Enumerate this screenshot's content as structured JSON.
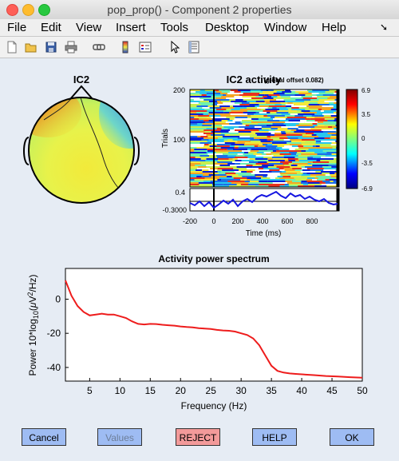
{
  "window": {
    "title": "pop_prop() - Component 2 properties"
  },
  "menu": [
    "File",
    "Edit",
    "View",
    "Insert",
    "Tools",
    "Desktop",
    "Window",
    "Help"
  ],
  "toolbar": [
    "new-icon",
    "open-icon",
    "save-icon",
    "print-icon",
    "link-icon",
    "colorbar-icon",
    "legend-icon",
    "pointer-icon",
    "property-editor-icon"
  ],
  "scalp": {
    "title": "IC2"
  },
  "erp": {
    "title": "IC2 activity",
    "subtitle": "(global offset 0.082)",
    "ylabel": "Trials",
    "trial_ticks": [
      "200",
      "100"
    ],
    "erp_ticks": [
      "0.4",
      "-0.3000"
    ],
    "xticks": [
      "-200",
      "0",
      "200",
      "400",
      "600",
      "800"
    ],
    "xlabel": "Time (ms)",
    "colorbar_ticks": [
      "6.9",
      "3.5",
      "0",
      "-3.5",
      "-6.9"
    ]
  },
  "chart_data": {
    "type": "line",
    "title": "Activity power spectrum",
    "xlabel": "Frequency (Hz)",
    "ylabel": "Power 10*log10(μV²/Hz)",
    "xlim": [
      1,
      50
    ],
    "ylim": [
      -48,
      18
    ],
    "xticks": [
      5,
      10,
      15,
      20,
      25,
      30,
      35,
      40,
      45,
      50
    ],
    "yticks": [
      0,
      -20,
      -40
    ],
    "series": [
      {
        "color": "#ee1c1c",
        "x": [
          1,
          2,
          3,
          4,
          5,
          6,
          7,
          8,
          9,
          10,
          11,
          12,
          13,
          14,
          15,
          16,
          17,
          18,
          19,
          20,
          21,
          22,
          23,
          24,
          25,
          26,
          27,
          28,
          29,
          30,
          31,
          32,
          33,
          34,
          35,
          36,
          37,
          38,
          39,
          40,
          42,
          44,
          46,
          48,
          50
        ],
        "y": [
          11,
          2,
          -4,
          -7.5,
          -9.5,
          -9,
          -8.5,
          -9,
          -9,
          -10,
          -11,
          -13,
          -14.5,
          -14.8,
          -14.5,
          -14.6,
          -15,
          -15.3,
          -15.5,
          -16,
          -16.3,
          -16.5,
          -17,
          -17.2,
          -17.5,
          -18,
          -18.3,
          -18.5,
          -19,
          -20,
          -21,
          -23,
          -27,
          -33,
          -39,
          -42,
          -43,
          -43.5,
          -43.8,
          -44,
          -44.5,
          -45,
          -45.3,
          -45.7,
          -46
        ]
      }
    ]
  },
  "buttons": {
    "cancel": "Cancel",
    "values": "Values",
    "reject": "REJECT",
    "help": "HELP",
    "ok": "OK"
  }
}
